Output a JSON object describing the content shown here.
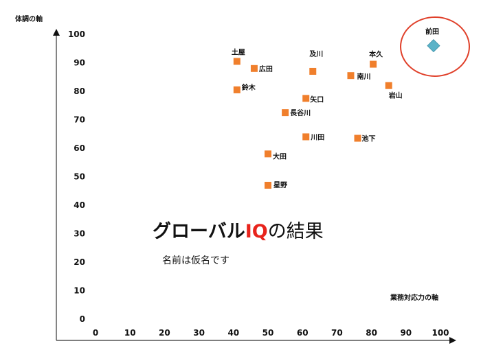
{
  "chart_data": {
    "type": "scatter",
    "title_parts": [
      "グローバル",
      "IQ",
      "の結果"
    ],
    "subtitle": "名前は仮名です",
    "xlabel": "業務対応力の軸",
    "ylabel": "体調の軸",
    "xlim": [
      0,
      100
    ],
    "ylim": [
      0,
      100
    ],
    "x_ticks": [
      "0",
      "10",
      "20",
      "30",
      "40",
      "50",
      "60",
      "70",
      "80",
      "90",
      "100"
    ],
    "y_ticks": [
      "0",
      "10",
      "20",
      "30",
      "40",
      "50",
      "60",
      "70",
      "80",
      "90",
      "100"
    ],
    "grid": false,
    "series": [
      {
        "marker": "square",
        "color": "#F07F2C",
        "points": [
          {
            "label": "土屋",
            "x": 41,
            "y": 90.5
          },
          {
            "label": "広田",
            "x": 46,
            "y": 88
          },
          {
            "label": "及川",
            "x": 63,
            "y": 87
          },
          {
            "label": "南川",
            "x": 74,
            "y": 85.5
          },
          {
            "label": "本久",
            "x": 80.5,
            "y": 89.5
          },
          {
            "label": "岩山",
            "x": 85,
            "y": 82
          },
          {
            "label": "鈴木",
            "x": 41,
            "y": 80.5
          },
          {
            "label": "矢口",
            "x": 61,
            "y": 77.5
          },
          {
            "label": "長谷川",
            "x": 55,
            "y": 72.5
          },
          {
            "label": "川田",
            "x": 61,
            "y": 64
          },
          {
            "label": "池下",
            "x": 76,
            "y": 63.5
          },
          {
            "label": "大田",
            "x": 50,
            "y": 58
          },
          {
            "label": "星野",
            "x": 50,
            "y": 47
          }
        ]
      },
      {
        "marker": "diamond",
        "color": "#5BB3C8",
        "points": [
          {
            "label": "前田",
            "x": 98,
            "y": 96
          }
        ]
      }
    ],
    "highlight_color": "#E0402A",
    "title_accent_color": "#E8241C"
  }
}
